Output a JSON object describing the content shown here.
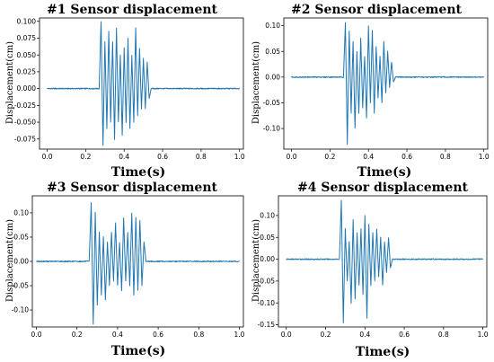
{
  "chart_data": [
    {
      "type": "line",
      "title": "#1 Sensor displacement",
      "xlabel": "Time(s)",
      "ylabel": "Displacement(cm)",
      "xlim": [
        -0.04,
        1.02
      ],
      "ylim": [
        -0.09,
        0.105
      ],
      "xticks": [
        0.0,
        0.2,
        0.4,
        0.6,
        0.8,
        1.0
      ],
      "xtick_labels": [
        "0.0",
        "0.2",
        "0.4",
        "0.6",
        "0.8",
        "1.0"
      ],
      "yticks": [
        -0.075,
        -0.05,
        -0.025,
        0.0,
        0.025,
        0.05,
        0.075,
        0.1
      ],
      "ytick_labels": [
        "-0.075",
        "-0.050",
        "-0.025",
        "0.000",
        "0.025",
        "0.050",
        "0.075",
        "0.100"
      ],
      "grid": false,
      "legend": "none",
      "color": "#1f77b4",
      "series": [
        {
          "x": [
            0.0,
            0.27,
            0.28,
            0.29,
            0.3,
            0.31,
            0.32,
            0.33,
            0.34,
            0.35,
            0.36,
            0.37,
            0.38,
            0.39,
            0.4,
            0.41,
            0.42,
            0.43,
            0.44,
            0.45,
            0.46,
            0.47,
            0.48,
            0.49,
            0.5,
            0.51,
            0.52,
            0.53,
            0.54,
            1.0
          ],
          "y": [
            0.0,
            0.0,
            0.1,
            -0.085,
            0.07,
            -0.06,
            0.085,
            -0.05,
            0.07,
            -0.075,
            0.09,
            -0.05,
            0.05,
            -0.07,
            0.06,
            -0.05,
            0.075,
            -0.06,
            0.05,
            -0.05,
            0.09,
            -0.04,
            0.06,
            -0.03,
            0.045,
            -0.03,
            0.04,
            -0.015,
            0.0,
            0.0
          ]
        }
      ]
    },
    {
      "type": "line",
      "title": "#2 Sensor displacement",
      "xlabel": "Time(s)",
      "ylabel": "Displacement(cm)",
      "xlim": [
        -0.04,
        1.02
      ],
      "ylim": [
        -0.14,
        0.115
      ],
      "xticks": [
        0.0,
        0.2,
        0.4,
        0.6,
        0.8,
        1.0
      ],
      "xtick_labels": [
        "0.0",
        "0.2",
        "0.4",
        "0.6",
        "0.8",
        "1.0"
      ],
      "yticks": [
        -0.1,
        -0.05,
        0.0,
        0.05,
        0.1
      ],
      "ytick_labels": [
        "-0.10",
        "-0.05",
        "0.00",
        "0.05",
        "0.10"
      ],
      "grid": false,
      "legend": "none",
      "color": "#1f77b4",
      "series": [
        {
          "x": [
            0.0,
            0.27,
            0.28,
            0.29,
            0.3,
            0.31,
            0.32,
            0.33,
            0.34,
            0.35,
            0.36,
            0.37,
            0.38,
            0.39,
            0.4,
            0.41,
            0.42,
            0.43,
            0.44,
            0.45,
            0.46,
            0.47,
            0.48,
            0.49,
            0.5,
            0.51,
            0.52,
            0.53,
            0.54,
            1.0
          ],
          "y": [
            0.0,
            0.0,
            0.105,
            -0.13,
            0.09,
            -0.07,
            0.07,
            -0.1,
            0.05,
            -0.07,
            0.075,
            -0.06,
            0.04,
            -0.08,
            0.1,
            -0.05,
            0.09,
            -0.07,
            0.06,
            -0.04,
            0.04,
            -0.05,
            0.07,
            -0.03,
            0.05,
            -0.02,
            0.03,
            -0.01,
            0.0,
            0.0
          ]
        }
      ]
    },
    {
      "type": "line",
      "title": "#3 Sensor displacement",
      "xlabel": "Time(s)",
      "ylabel": "Displacement(cm)",
      "xlim": [
        -0.02,
        1.02
      ],
      "ylim": [
        -0.135,
        0.135
      ],
      "xticks": [
        0.0,
        0.2,
        0.4,
        0.6,
        0.8,
        1.0
      ],
      "xtick_labels": [
        "0.0",
        "0.2",
        "0.4",
        "0.6",
        "0.8",
        "1.0"
      ],
      "yticks": [
        -0.1,
        -0.05,
        0.0,
        0.05,
        0.1
      ],
      "ytick_labels": [
        "-0.10",
        "-0.05",
        "0.00",
        "0.05",
        "0.10"
      ],
      "grid": false,
      "legend": "none",
      "color": "#1f77b4",
      "series": [
        {
          "x": [
            0.0,
            0.26,
            0.27,
            0.28,
            0.29,
            0.3,
            0.31,
            0.32,
            0.33,
            0.34,
            0.35,
            0.36,
            0.37,
            0.38,
            0.39,
            0.4,
            0.41,
            0.42,
            0.43,
            0.44,
            0.45,
            0.46,
            0.47,
            0.48,
            0.49,
            0.5,
            0.51,
            0.52,
            0.53,
            0.54,
            1.0
          ],
          "y": [
            0.0,
            0.0,
            0.12,
            -0.13,
            0.1,
            -0.09,
            0.06,
            -0.07,
            0.05,
            -0.08,
            0.04,
            -0.05,
            0.06,
            -0.04,
            0.08,
            -0.05,
            0.04,
            -0.06,
            0.09,
            -0.04,
            0.06,
            -0.05,
            0.1,
            -0.07,
            0.09,
            -0.06,
            0.085,
            -0.05,
            0.04,
            0.0,
            0.0
          ]
        }
      ]
    },
    {
      "type": "line",
      "title": "#4 Sensor displacement",
      "xlabel": "Time(s)",
      "ylabel": "Displacement(cm)",
      "xlim": [
        -0.04,
        1.02
      ],
      "ylim": [
        -0.155,
        0.145
      ],
      "xticks": [
        0.0,
        0.2,
        0.4,
        0.6,
        0.8,
        1.0
      ],
      "xtick_labels": [
        "0.0",
        "0.2",
        "0.4",
        "0.6",
        "0.8",
        "1.0"
      ],
      "yticks": [
        -0.15,
        -0.1,
        -0.05,
        0.0,
        0.05,
        0.1
      ],
      "ytick_labels": [
        "-0.15",
        "-0.10",
        "-0.05",
        "0.00",
        "0.05",
        "0.10"
      ],
      "grid": false,
      "legend": "none",
      "color": "#1f77b4",
      "series": [
        {
          "x": [
            0.0,
            0.27,
            0.28,
            0.29,
            0.3,
            0.31,
            0.32,
            0.33,
            0.34,
            0.35,
            0.36,
            0.37,
            0.38,
            0.39,
            0.4,
            0.41,
            0.42,
            0.43,
            0.44,
            0.45,
            0.46,
            0.47,
            0.48,
            0.49,
            0.5,
            0.51,
            0.52,
            0.53,
            0.54,
            1.0
          ],
          "y": [
            0.0,
            0.0,
            0.135,
            -0.145,
            0.07,
            -0.05,
            0.04,
            -0.1,
            0.09,
            -0.09,
            0.06,
            -0.06,
            0.07,
            -0.08,
            0.1,
            -0.135,
            0.08,
            -0.06,
            0.06,
            -0.05,
            0.07,
            -0.04,
            0.05,
            -0.06,
            0.04,
            -0.03,
            0.05,
            -0.02,
            0.0,
            0.0
          ]
        }
      ]
    }
  ]
}
